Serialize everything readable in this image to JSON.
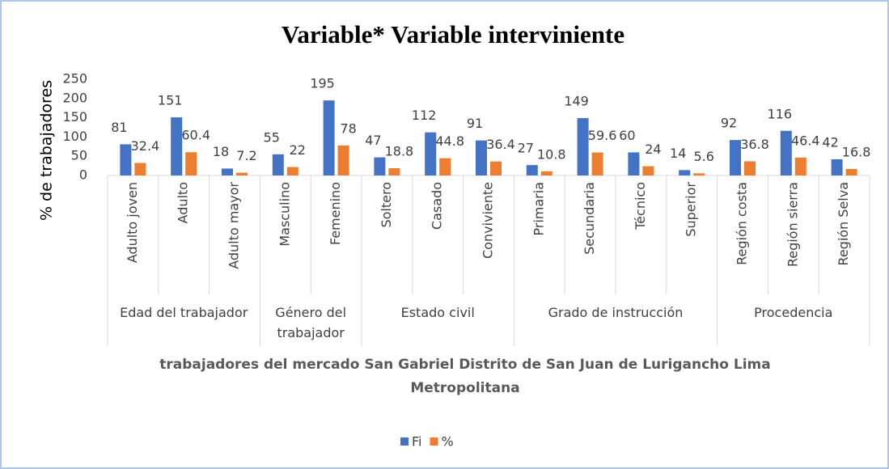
{
  "chart_data": {
    "type": "bar",
    "title": "Variable* Variable interviniente",
    "y_label": "% de trabajadores",
    "x_label": "trabajadores del mercado San Gabriel Distrito de San Juan de Lurigancho Lima Metropolitana",
    "groups": [
      {
        "name": "Edad del trabajador",
        "categories": [
          "Adulto joven",
          "Adulto",
          "Adulto mayor"
        ]
      },
      {
        "name": "Género del trabajador",
        "categories": [
          "Masculino",
          "Femenino"
        ]
      },
      {
        "name": "Estado civil",
        "categories": [
          "Soltero",
          "Casado",
          "Conviviente"
        ]
      },
      {
        "name": "Grado de instrucción",
        "categories": [
          "Primaria",
          "Secundaria",
          "Técnico",
          "Superior"
        ]
      },
      {
        "name": "Procedencia",
        "categories": [
          "Región costa",
          "Región sierra",
          "Región Selva"
        ]
      }
    ],
    "series": [
      {
        "name": "Fi",
        "color": "#4472c4",
        "values": [
          81,
          151,
          18,
          55,
          195,
          47,
          112,
          91,
          27,
          149,
          60,
          14,
          92,
          116,
          42
        ]
      },
      {
        "name": "%",
        "color": "#ed7d31",
        "values": [
          32.4,
          60.4,
          7.2,
          22,
          78,
          18.8,
          44.8,
          36.4,
          10.8,
          59.6,
          24,
          5.6,
          36.8,
          46.4,
          16.8
        ]
      }
    ],
    "ylim": [
      0,
      250
    ],
    "yticks": [
      0,
      50,
      100,
      150,
      200,
      250
    ],
    "grid": false,
    "legend": "bottom"
  }
}
